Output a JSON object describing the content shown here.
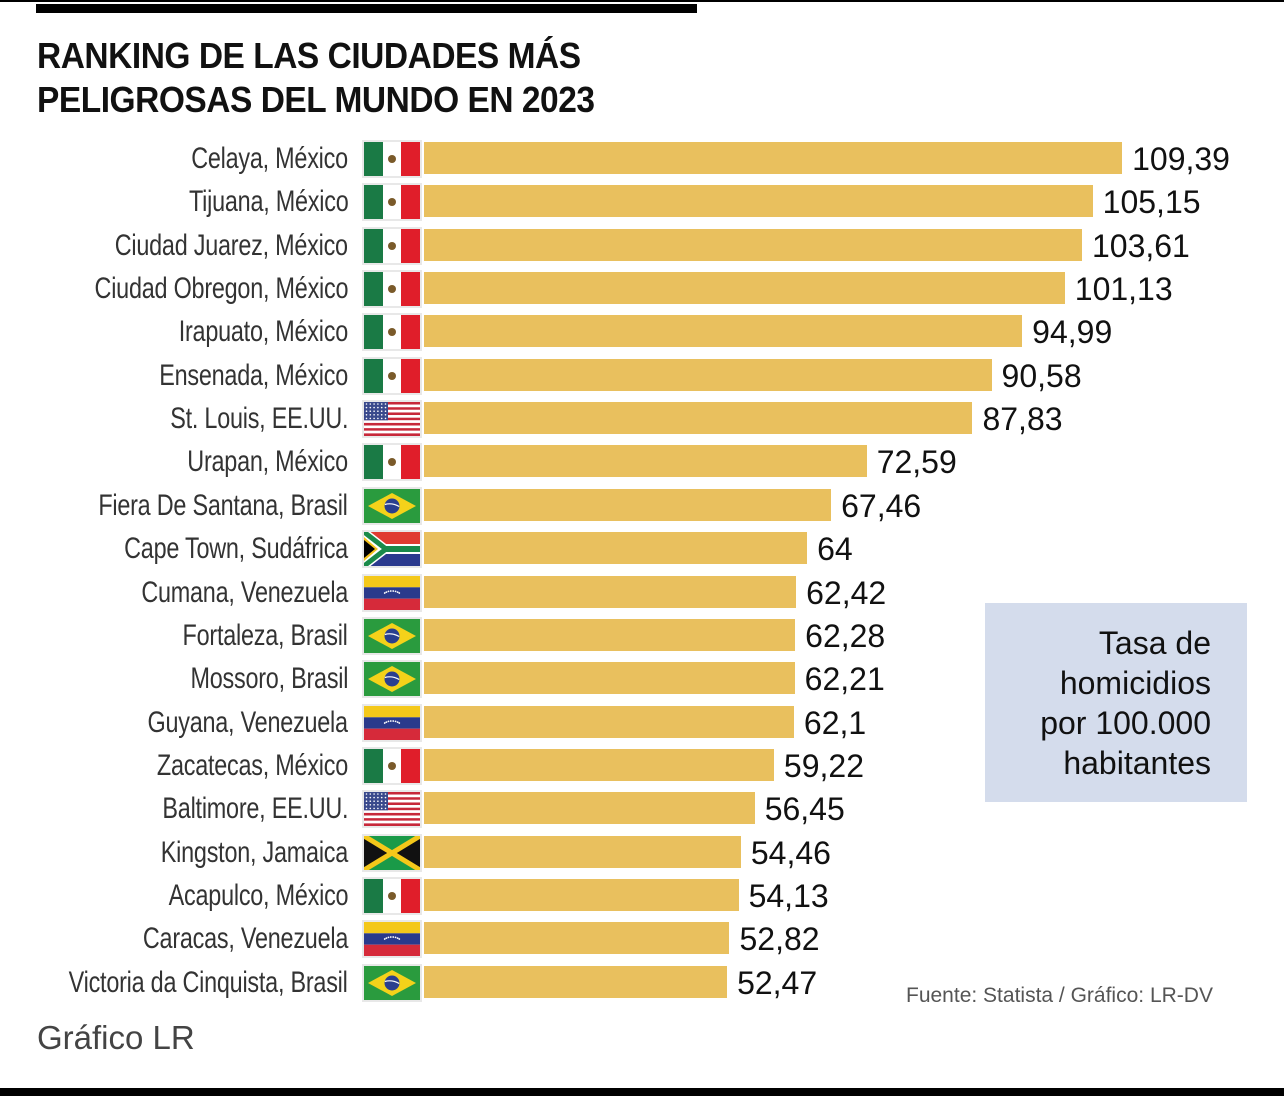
{
  "header": {
    "title_line1": "RANKING DE LAS CIUDADES MÁS",
    "title_line2": "PELIGROSAS DEL MUNDO EN 2023"
  },
  "legend": {
    "line1": "Tasa de",
    "line2": "homicidios",
    "line3": "por 100.000",
    "line4": "habitantes"
  },
  "footer": {
    "source": "Fuente: Statista / Gráfico: LR-DV",
    "credit": "Gráfico LR"
  },
  "colors": {
    "bar": "#e9c05e",
    "legend_bg": "#d4dcec",
    "text": "#111111"
  },
  "chart_data": {
    "type": "bar",
    "orientation": "horizontal",
    "title": "RANKING DE LAS CIUDADES MÁS PELIGROSAS DEL MUNDO EN 2023",
    "xlabel": "Tasa de homicidios por 100.000 habitantes",
    "ylabel": "",
    "grid": false,
    "legend_position": "right",
    "categories": [
      "Celaya, México",
      "Tijuana, México",
      "Ciudad Juarez, México",
      "Ciudad Obregon, México",
      "Irapuato, México",
      "Ensenada, México",
      "St. Louis, EE.UU.",
      "Urapan, México",
      "Fiera De Santana, Brasil",
      "Cape Town, Sudáfrica",
      "Cumana, Venezuela",
      "Fortaleza, Brasil",
      "Mossoro, Brasil",
      "Guyana, Venezuela",
      "Zacatecas, México",
      "Baltimore, EE.UU.",
      "Kingston, Jamaica",
      "Acapulco, México",
      "Caracas, Venezuela",
      "Victoria da Cinquista, Brasil"
    ],
    "values": [
      109.39,
      105.15,
      103.61,
      101.13,
      94.99,
      90.58,
      87.83,
      72.59,
      67.46,
      64,
      62.42,
      62.28,
      62.21,
      62.1,
      59.22,
      56.45,
      54.46,
      54.13,
      52.82,
      52.47
    ],
    "value_labels": [
      "109,39",
      "105,15",
      "103,61",
      "101,13",
      "94,99",
      "90,58",
      "87,83",
      "72,59",
      "67,46",
      "64",
      "62,42",
      "62,28",
      "62,21",
      "62,1",
      "59,22",
      "56,45",
      "54,46",
      "54,13",
      "52,82",
      "52,47"
    ],
    "flags": [
      "mexico-flag",
      "mexico-flag",
      "mexico-flag",
      "mexico-flag",
      "mexico-flag",
      "mexico-flag",
      "usa-flag",
      "mexico-flag",
      "brazil-flag",
      "south-africa-flag",
      "venezuela-flag",
      "brazil-flag",
      "brazil-flag",
      "venezuela-flag",
      "mexico-flag",
      "usa-flag",
      "jamaica-flag",
      "mexico-flag",
      "venezuela-flag",
      "brazil-flag"
    ]
  }
}
